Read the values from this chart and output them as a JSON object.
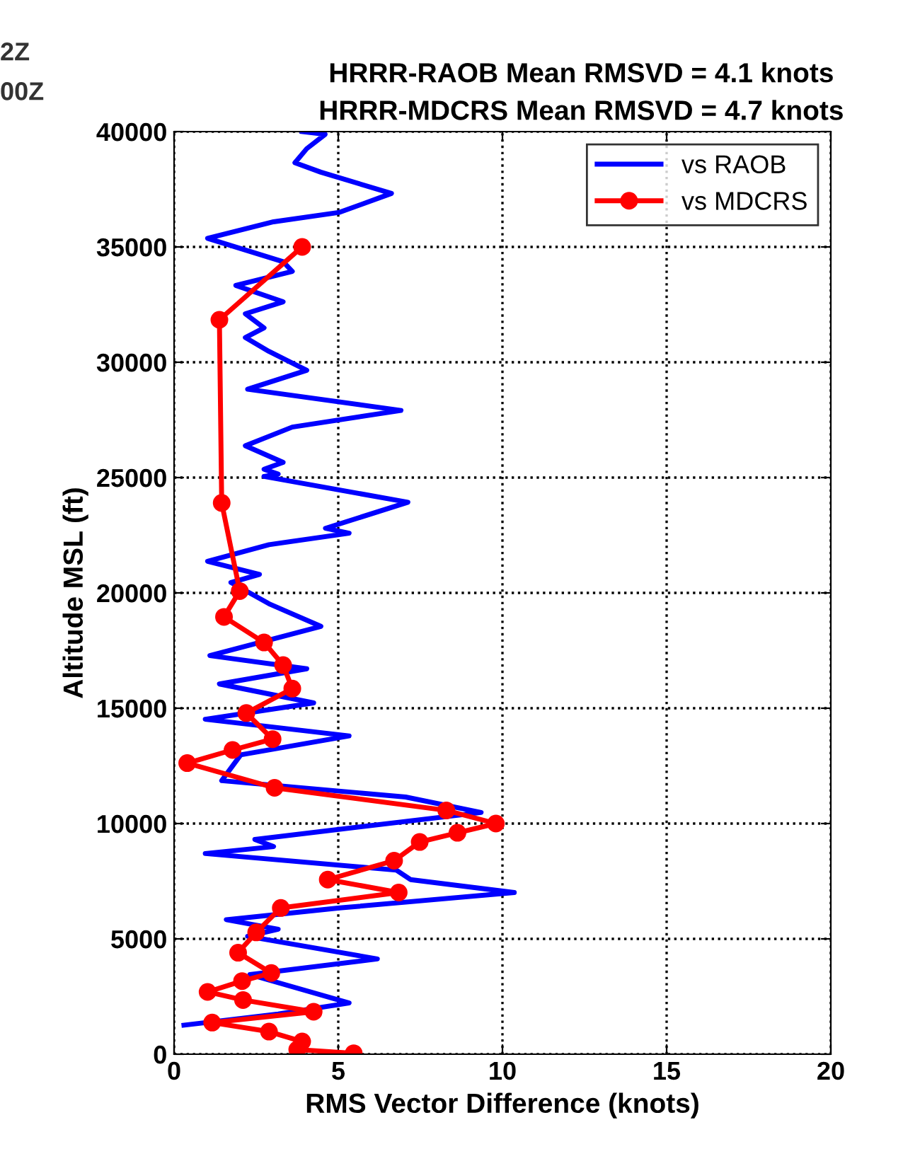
{
  "chart_data": {
    "type": "line",
    "title": "HRRR-RAOB Mean RMSVD = 4.1 knots\nHRRR-MDCRS Mean RMSVD = 4.7 knots",
    "xlabel": "RMS Vector Difference (knots)",
    "ylabel": "Altitude MSL (ft)",
    "annotations": [
      "2Z",
      "00Z"
    ],
    "xlim": [
      0,
      20
    ],
    "xticks": [
      0,
      5,
      10,
      15,
      20
    ],
    "ylim": [
      0,
      40000
    ],
    "yticks": [
      0,
      5000,
      10000,
      15000,
      20000,
      25000,
      30000,
      35000,
      40000
    ],
    "grid": true,
    "legend": "top right",
    "line_style": "solid",
    "series": [
      {
        "name": "vs RAOB",
        "color": "#0000ff",
        "marker": "none",
        "x": [
          3.9,
          4.6,
          4.04,
          3.68,
          4.47,
          6.62,
          5.04,
          3.03,
          1.02,
          3.32,
          3.6,
          1.88,
          3.32,
          2.17,
          2.74,
          2.17,
          2.89,
          4.04,
          2.24,
          6.91,
          3.6,
          2.17,
          3.32,
          2.74,
          3.17,
          2.74,
          7.12,
          4.61,
          5.33,
          2.89,
          1.02,
          2.6,
          1.73,
          2.89,
          4.47,
          1.09,
          4.04,
          1.38,
          4.25,
          0.95,
          5.33,
          2.03,
          1.45,
          7.05,
          9.35,
          2.46,
          3.03,
          0.95,
          6.77,
          7.2,
          10.36,
          5.04,
          1.59,
          3.17,
          2.24,
          6.19,
          2.31,
          5.33,
          3.17,
          0.3
        ],
        "values": [
          40000,
          39880,
          39260,
          38650,
          38240,
          37320,
          36500,
          36090,
          35370,
          34360,
          33940,
          33330,
          32620,
          32100,
          31490,
          31070,
          30470,
          29650,
          28830,
          27910,
          27190,
          26380,
          25660,
          25360,
          25150,
          25050,
          23930,
          22800,
          22590,
          22090,
          21370,
          20800,
          20450,
          19530,
          18550,
          17280,
          16710,
          16050,
          15230,
          14520,
          13800,
          12980,
          11860,
          11150,
          10480,
          9310,
          9000,
          8700,
          7980,
          7570,
          7010,
          6340,
          5830,
          5420,
          5110,
          4130,
          3450,
          2220,
          1740,
          1260
        ]
      },
      {
        "name": "vs MDCRS",
        "color": "#ff0000",
        "marker": "circle",
        "x": [
          3.9,
          1.38,
          1.45,
          2.0,
          1.52,
          2.74,
          3.32,
          3.6,
          2.2,
          3.0,
          1.78,
          0.4,
          3.06,
          8.29,
          9.8,
          8.63,
          7.48,
          6.7,
          4.68,
          6.84,
          3.25,
          2.5,
          1.95,
          2.96,
          2.07,
          1.02,
          2.1,
          4.25,
          1.16,
          2.89,
          3.9,
          3.75,
          5.47
        ],
        "values": [
          35000,
          31840,
          23900,
          20080,
          18960,
          17850,
          16870,
          15850,
          14790,
          13660,
          13190,
          12620,
          11550,
          10570,
          10000,
          9600,
          9200,
          8390,
          7570,
          7010,
          6340,
          5280,
          4400,
          3520,
          3170,
          2700,
          2350,
          1840,
          1370,
          980,
          550,
          200,
          40
        ]
      }
    ]
  }
}
